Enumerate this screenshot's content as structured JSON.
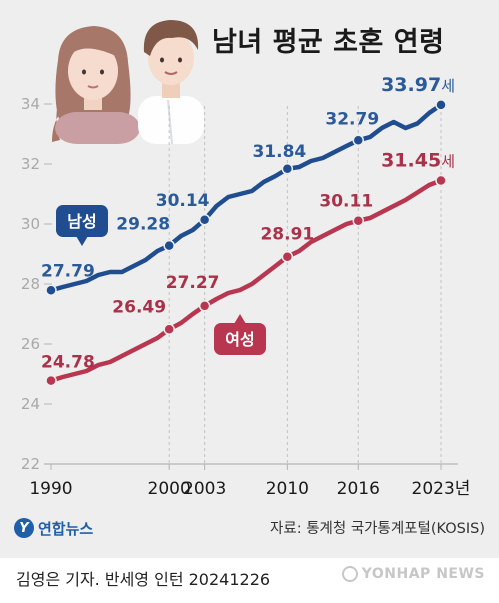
{
  "title": "남녀 평균 초혼 연령",
  "source": "자료: 통계청 국가통계포털(KOSIS)",
  "logo": {
    "mark": "Y",
    "text": "연합뉴스"
  },
  "credit": "김영은 기자. 반세영 인턴  20241226",
  "watermark": "YONHAP NEWS",
  "colors": {
    "male": "#1f4d8f",
    "female": "#b8364f",
    "male_label": "#2a5a9a",
    "female_label": "#a7324a",
    "axis": "#b5b5b5",
    "background": "#eeeeee"
  },
  "icons": {
    "illustration": "couple-illustration-icon"
  },
  "chart_data": {
    "type": "line",
    "title": "남녀 평균 초혼 연령",
    "xlabel": "",
    "ylabel": "",
    "ylim": [
      22,
      35
    ],
    "xlim": [
      1990,
      2023
    ],
    "y_ticks": [
      22,
      24,
      26,
      28,
      30,
      32,
      34
    ],
    "x_ticks": [
      {
        "x": 1990,
        "label": "1990"
      },
      {
        "x": 2000,
        "label": "2000"
      },
      {
        "x": 2003,
        "label": "2003"
      },
      {
        "x": 2010,
        "label": "2010"
      },
      {
        "x": 2016,
        "label": "2016"
      },
      {
        "x": 2023,
        "label": "2023년"
      }
    ],
    "grid": false,
    "series": [
      {
        "name": "남성",
        "color": "#1f4d8f",
        "points": [
          [
            1990,
            27.79
          ],
          [
            1991,
            27.9
          ],
          [
            1992,
            28.0
          ],
          [
            1993,
            28.1
          ],
          [
            1994,
            28.3
          ],
          [
            1995,
            28.4
          ],
          [
            1996,
            28.4
          ],
          [
            1997,
            28.6
          ],
          [
            1998,
            28.8
          ],
          [
            1999,
            29.1
          ],
          [
            2000,
            29.28
          ],
          [
            2001,
            29.6
          ],
          [
            2002,
            29.8
          ],
          [
            2003,
            30.14
          ],
          [
            2004,
            30.6
          ],
          [
            2005,
            30.9
          ],
          [
            2006,
            31.0
          ],
          [
            2007,
            31.1
          ],
          [
            2008,
            31.4
          ],
          [
            2009,
            31.6
          ],
          [
            2010,
            31.84
          ],
          [
            2011,
            31.9
          ],
          [
            2012,
            32.1
          ],
          [
            2013,
            32.2
          ],
          [
            2014,
            32.4
          ],
          [
            2015,
            32.6
          ],
          [
            2016,
            32.79
          ],
          [
            2017,
            32.9
          ],
          [
            2018,
            33.2
          ],
          [
            2019,
            33.4
          ],
          [
            2020,
            33.2
          ],
          [
            2021,
            33.35
          ],
          [
            2022,
            33.7
          ],
          [
            2023,
            33.97
          ]
        ],
        "labels": [
          {
            "x": 1990,
            "text": "27.79"
          },
          {
            "x": 2000,
            "text": "29.28"
          },
          {
            "x": 2003,
            "text": "30.14"
          },
          {
            "x": 2010,
            "text": "31.84"
          },
          {
            "x": 2016,
            "text": "32.79"
          },
          {
            "x": 2023,
            "text": "33.97"
          }
        ],
        "end_suffix": "세"
      },
      {
        "name": "여성",
        "color": "#b8364f",
        "points": [
          [
            1990,
            24.78
          ],
          [
            1991,
            24.9
          ],
          [
            1992,
            25.0
          ],
          [
            1993,
            25.1
          ],
          [
            1994,
            25.3
          ],
          [
            1995,
            25.4
          ],
          [
            1996,
            25.6
          ],
          [
            1997,
            25.8
          ],
          [
            1998,
            26.0
          ],
          [
            1999,
            26.2
          ],
          [
            2000,
            26.49
          ],
          [
            2001,
            26.7
          ],
          [
            2002,
            27.0
          ],
          [
            2003,
            27.27
          ],
          [
            2004,
            27.5
          ],
          [
            2005,
            27.7
          ],
          [
            2006,
            27.8
          ],
          [
            2007,
            28.0
          ],
          [
            2008,
            28.3
          ],
          [
            2009,
            28.6
          ],
          [
            2010,
            28.91
          ],
          [
            2011,
            29.1
          ],
          [
            2012,
            29.4
          ],
          [
            2013,
            29.6
          ],
          [
            2014,
            29.8
          ],
          [
            2015,
            30.0
          ],
          [
            2016,
            30.11
          ],
          [
            2017,
            30.2
          ],
          [
            2018,
            30.4
          ],
          [
            2019,
            30.6
          ],
          [
            2020,
            30.8
          ],
          [
            2021,
            31.05
          ],
          [
            2022,
            31.3
          ],
          [
            2023,
            31.45
          ]
        ],
        "labels": [
          {
            "x": 1990,
            "text": "24.78"
          },
          {
            "x": 2000,
            "text": "26.49"
          },
          {
            "x": 2003,
            "text": "27.27"
          },
          {
            "x": 2010,
            "text": "28.91"
          },
          {
            "x": 2016,
            "text": "30.11"
          },
          {
            "x": 2023,
            "text": "31.45"
          }
        ],
        "end_suffix": "세"
      }
    ]
  }
}
